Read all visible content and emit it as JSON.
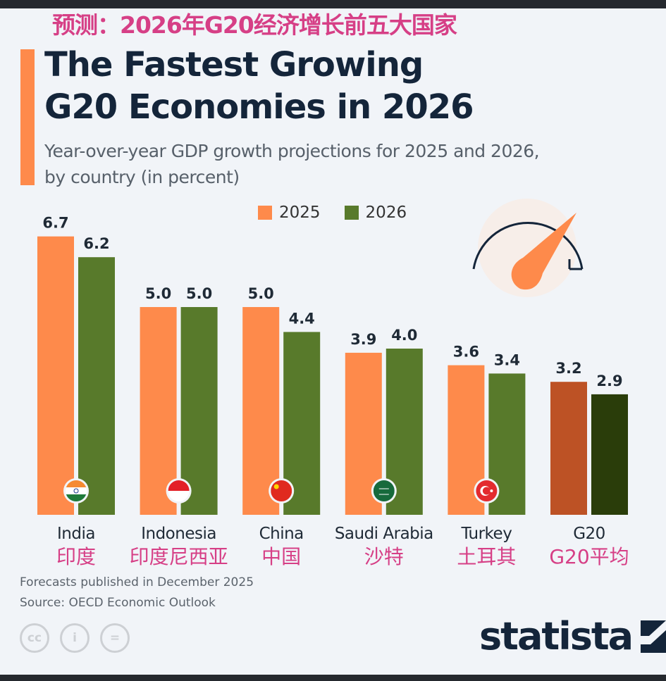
{
  "overlay_title": "预测：2026年G20经济增长前五大国家",
  "title_line1": "The Fastest Growing",
  "title_line2": "G20 Economies in 2026",
  "subtitle_line1": "Year-over-year GDP growth projections for 2025 and 2026,",
  "subtitle_line2": "by country (in percent)",
  "note": "Forecasts published in December 2025",
  "source": "Source: OECD Economic Outlook",
  "brand": "statista",
  "colors": {
    "2025": "#fe8a4b",
    "2026": "#587a2b",
    "g20_2025": "#bd5225",
    "g20_2026": "#2a3d0a",
    "accent": "#fe8a4b",
    "annotation": "#d63f86"
  },
  "chart_data": {
    "type": "bar",
    "categories": [
      "India",
      "Indonesia",
      "China",
      "Saudi Arabia",
      "Turkey",
      "G20"
    ],
    "categories_cn": [
      "印度",
      "印度尼西亚",
      "中国",
      "沙特",
      "土耳其",
      "G20平均"
    ],
    "flags": [
      "india-flag",
      "indonesia-flag",
      "china-flag",
      "saudi-arabia-flag",
      "turkey-flag",
      null
    ],
    "series": [
      {
        "name": "2025",
        "values": [
          6.7,
          5.0,
          5.0,
          3.9,
          3.6,
          3.2
        ]
      },
      {
        "name": "2026",
        "values": [
          6.2,
          5.0,
          4.4,
          4.0,
          3.4,
          2.9
        ]
      }
    ],
    "ylim": [
      0,
      6.7
    ],
    "grid": false,
    "legend": "top"
  }
}
